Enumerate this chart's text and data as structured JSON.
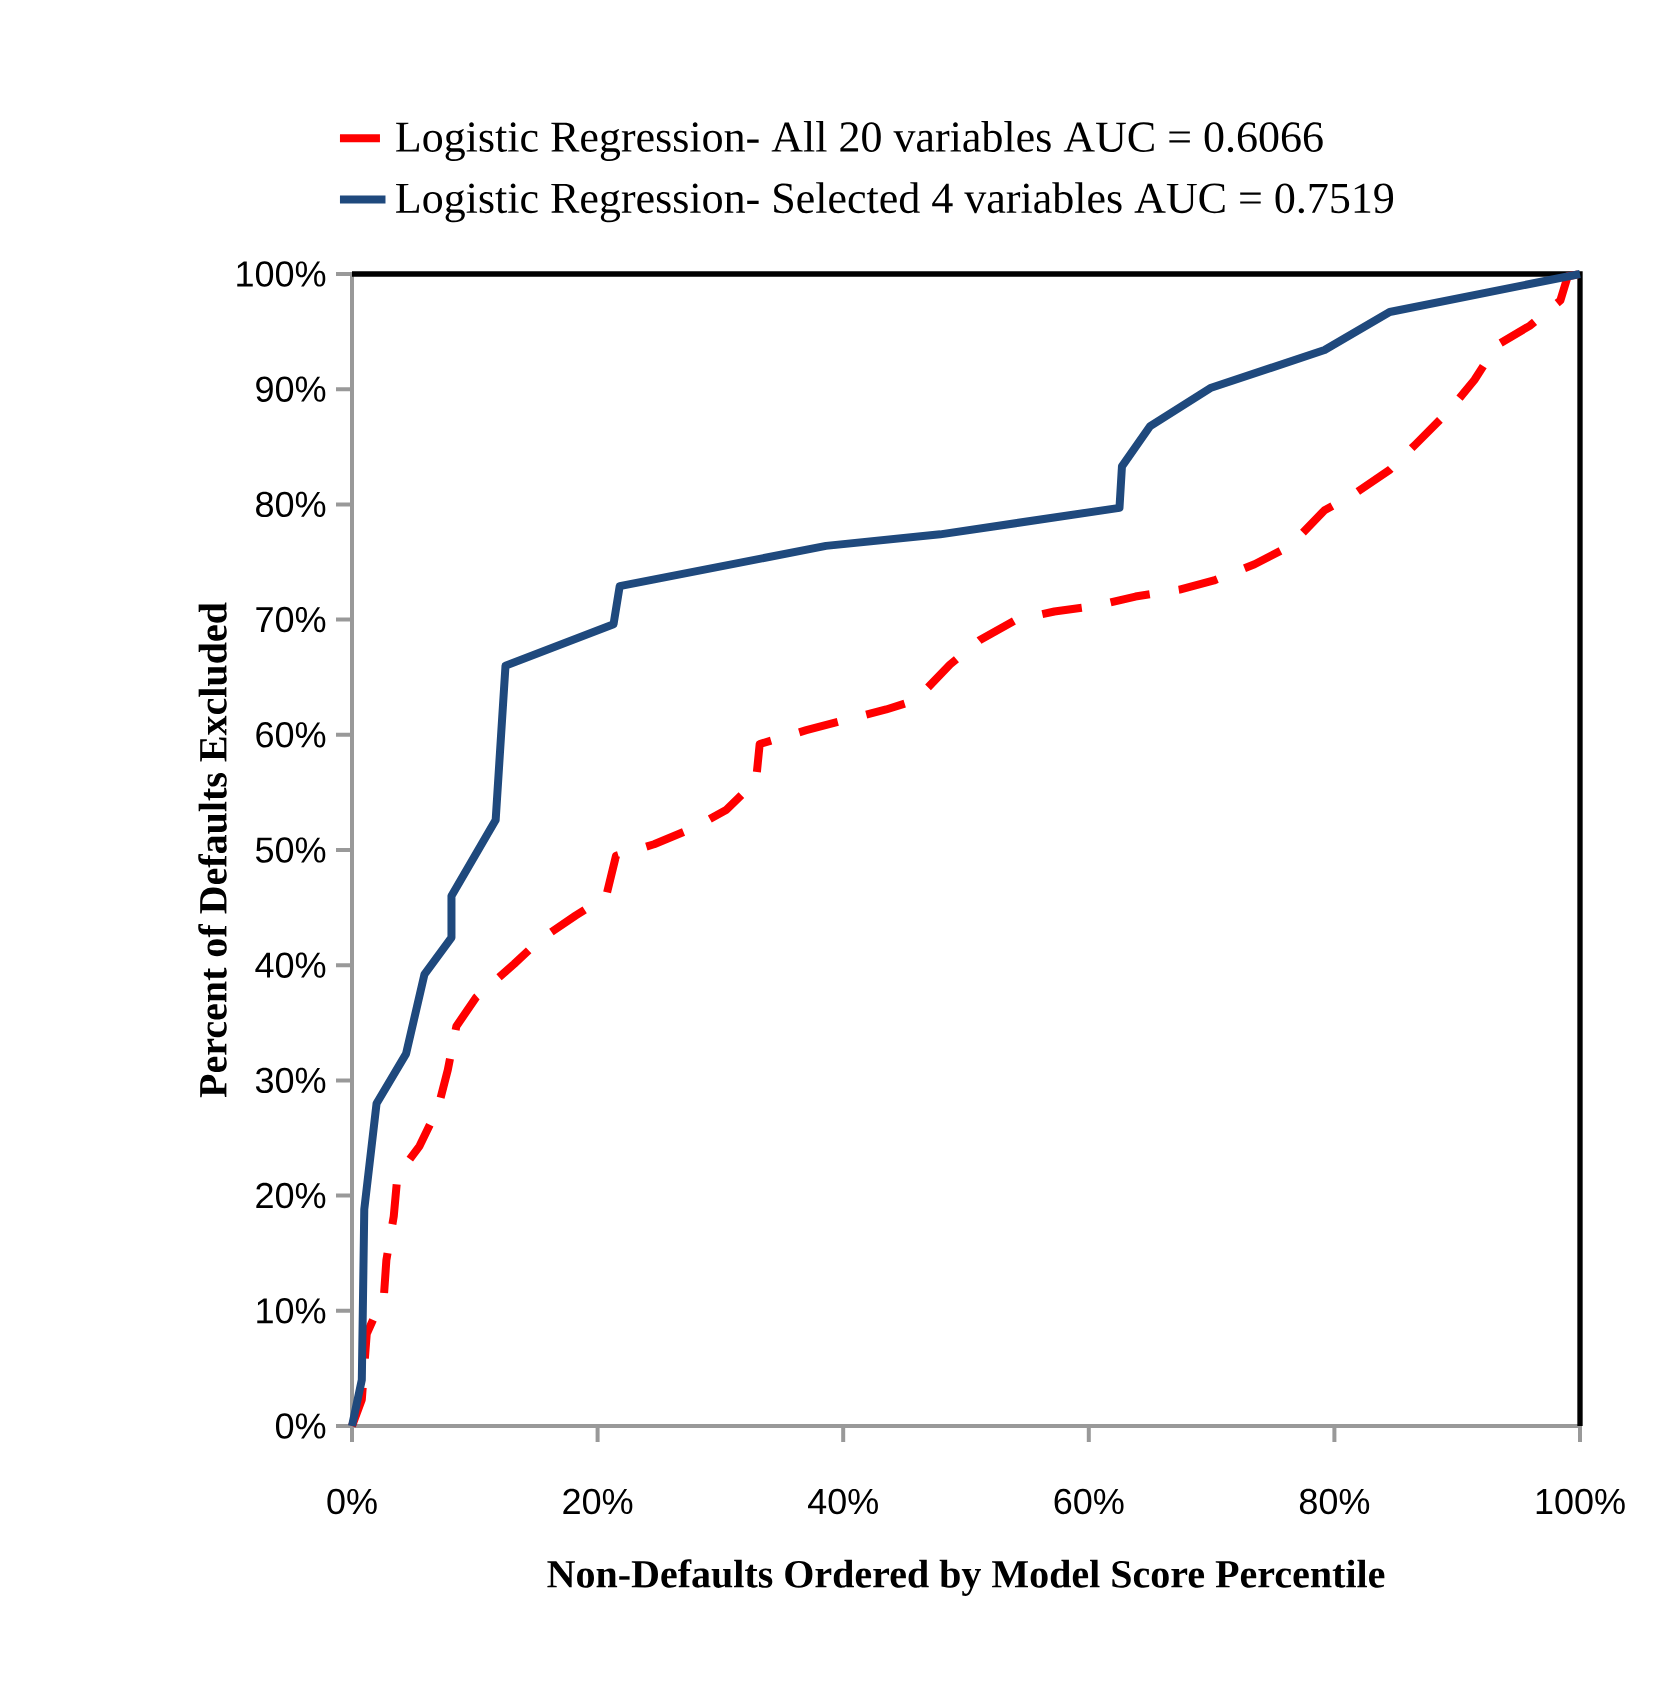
{
  "chart_data": {
    "type": "line",
    "xlabel": "Non-Defaults Ordered by Model Score Percentile",
    "ylabel": "Percent of Defaults Excluded",
    "xlim": [
      0,
      100
    ],
    "ylim": [
      0,
      100
    ],
    "xticks": [
      {
        "value": 0,
        "label": "0%"
      },
      {
        "value": 20,
        "label": "20%"
      },
      {
        "value": 40,
        "label": "40%"
      },
      {
        "value": 60,
        "label": "60%"
      },
      {
        "value": 80,
        "label": "80%"
      },
      {
        "value": 100,
        "label": "100%"
      }
    ],
    "yticks": [
      {
        "value": 0,
        "label": "0%"
      },
      {
        "value": 10,
        "label": "10%"
      },
      {
        "value": 20,
        "label": "20%"
      },
      {
        "value": 30,
        "label": "30%"
      },
      {
        "value": 40,
        "label": "40%"
      },
      {
        "value": 50,
        "label": "50%"
      },
      {
        "value": 60,
        "label": "60%"
      },
      {
        "value": 70,
        "label": "70%"
      },
      {
        "value": 80,
        "label": "80%"
      },
      {
        "value": 90,
        "label": "90%"
      },
      {
        "value": 100,
        "label": "100%"
      }
    ],
    "grid": false,
    "legend": "top",
    "series": [
      {
        "name": "Logistic Regression- All 20 variables AUC = 0.6066",
        "color": "#ff0000",
        "line_style": "dashed",
        "x": [
          0,
          0.8,
          1.2,
          2.6,
          2.8,
          3.4,
          3.7,
          5.5,
          7,
          7.8,
          8.5,
          10.1,
          13.2,
          15.3,
          18.2,
          20.7,
          21.5,
          24.6,
          28,
          30.5,
          32.9,
          33.2,
          37,
          40.2,
          43.5,
          45.9,
          48.7,
          51.1,
          54.1,
          57.2,
          60.6,
          63.8,
          67.4,
          70.2,
          73.5,
          76.4,
          79.2,
          81.6,
          84.5,
          86.6,
          89.4,
          91.4,
          93.2,
          95.9,
          98.4,
          99,
          100
        ],
        "values": [
          0,
          2.3,
          8,
          11.3,
          14.4,
          18.2,
          21.7,
          24.3,
          27.6,
          30.9,
          34.7,
          37.2,
          40.1,
          42.2,
          44.3,
          46,
          49.5,
          50.5,
          52,
          53.5,
          56,
          59.2,
          60.4,
          61.3,
          62.2,
          63,
          66.1,
          68.2,
          70,
          70.7,
          71.2,
          72,
          72.6,
          73.4,
          74.8,
          76.4,
          79.5,
          80.9,
          83,
          85.2,
          88.2,
          90.8,
          93.8,
          95.5,
          97.7,
          99.8,
          100
        ]
      },
      {
        "name": "Logistic Regression- Selected 4 variables AUC = 0.7519",
        "color": "#1f497d",
        "line_style": "solid",
        "x": [
          0,
          0.8,
          1,
          2,
          4.4,
          5.9,
          8.1,
          8.1,
          11.7,
          12.5,
          21.3,
          21.8,
          38.6,
          47.9,
          62.5,
          62.7,
          65,
          69.9,
          79.2,
          84.5,
          100
        ],
        "values": [
          0,
          4,
          18.8,
          28,
          32.3,
          39.2,
          42.4,
          46,
          52.6,
          66,
          69.6,
          72.9,
          76.4,
          77.4,
          79.7,
          83.3,
          86.8,
          90.1,
          93.4,
          96.7,
          100
        ]
      }
    ]
  }
}
